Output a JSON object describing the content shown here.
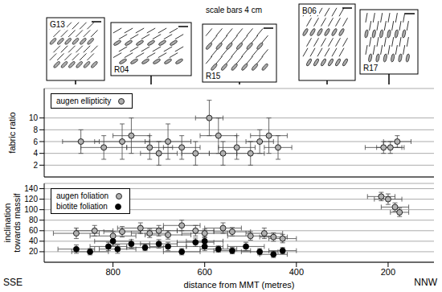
{
  "insets": {
    "note": "scale bars 4 cm",
    "labels": [
      "G13",
      "R04",
      "R15",
      "B06",
      "R17"
    ]
  },
  "chart_data": [
    {
      "type": "scatter",
      "y_label": "fabric ratio",
      "xlim": [
        950,
        100
      ],
      "xticks": [
        800,
        600,
        400,
        200
      ],
      "ylim": [
        0,
        15
      ],
      "yticks": [
        2,
        4,
        6,
        8,
        10
      ],
      "grid": true,
      "legend": "top left",
      "tick_labels": "y",
      "series": [
        {
          "name": "augen ellipticity",
          "color": "#b0b0b0",
          "marker": "circle",
          "x": [
            870,
            820,
            780,
            760,
            720,
            700,
            680,
            650,
            620,
            590,
            570,
            560,
            530,
            500,
            480,
            460,
            440,
            210,
            195,
            180
          ],
          "values": [
            6,
            5,
            6,
            7,
            5,
            4,
            6,
            5,
            4,
            10,
            7,
            4,
            5,
            4,
            6,
            7,
            5,
            5,
            5,
            6
          ],
          "x_error": [
            40,
            50,
            60,
            40,
            50,
            40,
            50,
            40,
            30,
            30,
            40,
            30,
            40,
            30,
            30,
            40,
            30,
            40,
            30,
            30
          ],
          "y_error": [
            2,
            2,
            3,
            3,
            2,
            2,
            3,
            2,
            2,
            3,
            3,
            2,
            2,
            2,
            2,
            3,
            2,
            1,
            1,
            1
          ]
        }
      ]
    },
    {
      "type": "scatter",
      "y_label": "inclination towards massif",
      "x_label": "distance from MMT (metres)",
      "annotations": [
        "SSE",
        "NNW"
      ],
      "xlim": [
        950,
        100
      ],
      "xticks": [
        800,
        600,
        400,
        200
      ],
      "ylim": [
        0,
        150
      ],
      "yticks": [
        20,
        40,
        60,
        80,
        100,
        120,
        140
      ],
      "grid": true,
      "legend": "top left",
      "series": [
        {
          "name": "augen foliation",
          "color": "#b0b0b0",
          "marker": "circle",
          "x": [
            880,
            840,
            800,
            780,
            740,
            720,
            700,
            680,
            650,
            620,
            600,
            560,
            540,
            500,
            470,
            450,
            430,
            215,
            200,
            185,
            175
          ],
          "values": [
            55,
            60,
            50,
            58,
            65,
            55,
            60,
            52,
            70,
            60,
            55,
            65,
            58,
            50,
            55,
            48,
            45,
            125,
            120,
            105,
            95
          ],
          "x_error": [
            50,
            40,
            50,
            40,
            50,
            40,
            40,
            50,
            40,
            40,
            50,
            40,
            40,
            50,
            40,
            30,
            30,
            30,
            30,
            30,
            20
          ],
          "y_error": [
            10,
            10,
            8,
            10,
            10,
            8,
            10,
            8,
            10,
            10,
            8,
            10,
            8,
            8,
            10,
            8,
            8,
            8,
            10,
            8,
            8
          ]
        },
        {
          "name": "biotite foliation",
          "color": "#000000",
          "marker": "circle",
          "x": [
            880,
            850,
            810,
            790,
            760,
            730,
            700,
            680,
            650,
            620,
            600,
            570,
            540,
            510,
            480,
            450,
            430,
            800,
            600
          ],
          "values": [
            25,
            20,
            30,
            25,
            35,
            28,
            35,
            30,
            20,
            38,
            30,
            25,
            22,
            30,
            20,
            15,
            22,
            40,
            40
          ],
          "x_error": [
            40,
            40,
            40,
            40,
            40,
            40,
            40,
            40,
            40,
            40,
            40,
            40,
            40,
            40,
            40,
            30,
            30,
            40,
            40
          ],
          "y_error": [
            8,
            6,
            8,
            8,
            8,
            6,
            8,
            8,
            6,
            8,
            8,
            6,
            6,
            8,
            6,
            6,
            6,
            8,
            8
          ]
        }
      ]
    }
  ]
}
